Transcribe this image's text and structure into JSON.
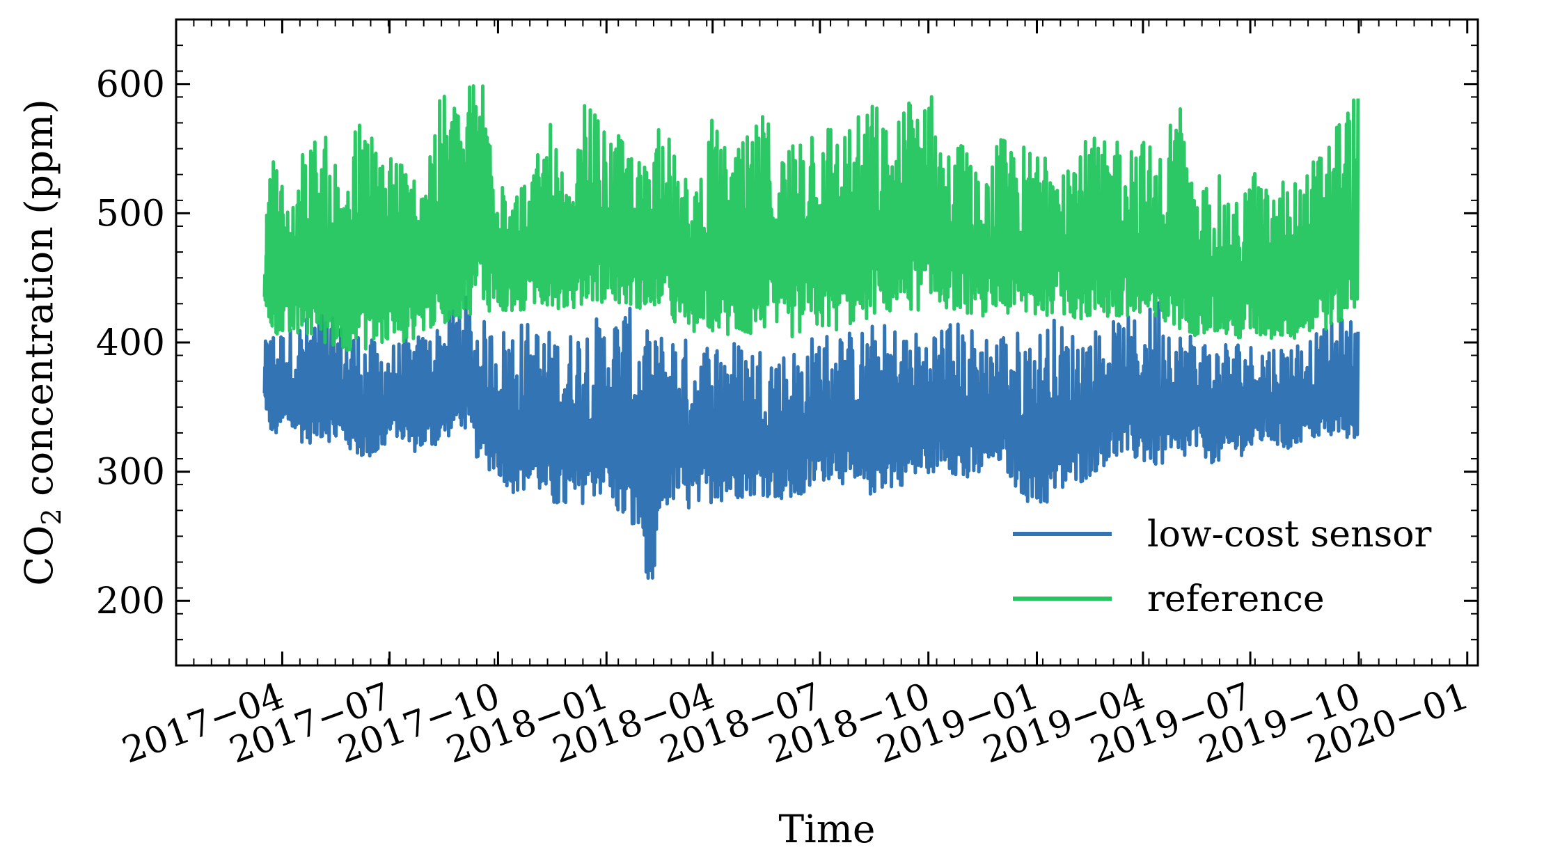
{
  "chart_data": {
    "type": "line",
    "xlabel": "Time",
    "ylabel_main": "CO",
    "ylabel_sub": "2",
    "ylabel_rest": " concentration (ppm)",
    "ylim": [
      150,
      650
    ],
    "xlim": [
      "2017-01-01",
      "2020-01-10"
    ],
    "x_axis_type": "date",
    "yticks": [
      200,
      300,
      400,
      500,
      600
    ],
    "xticks": [
      {
        "date": "2017-04-01",
        "label": "2017−04"
      },
      {
        "date": "2017-07-01",
        "label": "2017−07"
      },
      {
        "date": "2017-10-01",
        "label": "2017−10"
      },
      {
        "date": "2018-01-01",
        "label": "2018−01"
      },
      {
        "date": "2018-04-01",
        "label": "2018−04"
      },
      {
        "date": "2018-07-01",
        "label": "2018−07"
      },
      {
        "date": "2018-10-01",
        "label": "2018−10"
      },
      {
        "date": "2019-01-01",
        "label": "2019−01"
      },
      {
        "date": "2019-04-01",
        "label": "2019−04"
      },
      {
        "date": "2019-07-01",
        "label": "2019−07"
      },
      {
        "date": "2019-10-01",
        "label": "2019−10"
      },
      {
        "date": "2020-01-01",
        "label": "2020−01"
      }
    ],
    "grid": false,
    "legend_position": "lower-right",
    "series": [
      {
        "name": "low-cost sensor",
        "color": "#3274b4",
        "x": [
          "2017-03-17",
          "2017-03-24",
          "2017-04-05",
          "2017-04-20",
          "2017-05-05",
          "2017-05-20",
          "2017-06-05",
          "2017-06-20",
          "2017-07-05",
          "2017-07-20",
          "2017-08-05",
          "2017-08-18",
          "2017-09-01",
          "2017-09-15",
          "2017-10-01",
          "2017-10-15",
          "2017-11-01",
          "2017-11-15",
          "2017-12-01",
          "2017-12-15",
          "2018-01-01",
          "2018-01-15",
          "2018-02-01",
          "2018-02-08",
          "2018-02-15",
          "2018-03-01",
          "2018-03-15",
          "2018-04-01",
          "2018-04-15",
          "2018-05-01",
          "2018-05-15",
          "2018-06-01",
          "2018-06-15",
          "2018-07-01",
          "2018-07-15",
          "2018-08-01",
          "2018-08-15",
          "2018-09-01",
          "2018-09-15",
          "2018-10-01",
          "2018-10-15",
          "2018-11-01",
          "2018-11-15",
          "2018-12-01",
          "2018-12-15",
          "2019-01-01",
          "2019-01-15",
          "2019-02-01",
          "2019-02-15",
          "2019-03-01",
          "2019-03-15",
          "2019-04-01",
          "2019-04-15",
          "2019-05-01",
          "2019-05-15",
          "2019-06-01",
          "2019-06-15",
          "2019-07-01",
          "2019-07-15",
          "2019-08-01",
          "2019-08-15",
          "2019-09-01",
          "2019-09-15",
          "2019-10-01"
        ],
        "low": [
          350,
          320,
          330,
          315,
          320,
          315,
          305,
          305,
          325,
          310,
          312,
          320,
          330,
          300,
          290,
          275,
          280,
          265,
          260,
          270,
          275,
          250,
          235,
          175,
          260,
          270,
          260,
          270,
          270,
          275,
          275,
          270,
          270,
          285,
          290,
          270,
          275,
          280,
          285,
          290,
          300,
          280,
          290,
          300,
          280,
          260,
          270,
          280,
          290,
          300,
          305,
          300,
          295,
          300,
          310,
          300,
          305,
          310,
          320,
          310,
          320,
          320,
          320,
          320
        ],
        "high": [
          400,
          410,
          410,
          420,
          425,
          415,
          410,
          400,
          400,
          405,
          410,
          420,
          440,
          420,
          410,
          420,
          415,
          410,
          410,
          420,
          420,
          430,
          420,
          400,
          410,
          410,
          400,
          405,
          405,
          400,
          400,
          395,
          400,
          410,
          410,
          410,
          415,
          415,
          410,
          410,
          420,
          415,
          410,
          410,
          410,
          410,
          420,
          410,
          410,
          415,
          420,
          420,
          440,
          410,
          410,
          400,
          405,
          400,
          400,
          400,
          405,
          410,
          420,
          420
        ]
      },
      {
        "name": "reference",
        "color": "#22c55e",
        "x": [
          "2017-03-17",
          "2017-03-24",
          "2017-04-05",
          "2017-04-20",
          "2017-05-05",
          "2017-05-20",
          "2017-06-05",
          "2017-06-20",
          "2017-07-05",
          "2017-07-20",
          "2017-08-05",
          "2017-08-18",
          "2017-09-01",
          "2017-09-15",
          "2017-10-01",
          "2017-10-15",
          "2017-11-01",
          "2017-11-15",
          "2017-12-01",
          "2017-12-15",
          "2018-01-01",
          "2018-01-15",
          "2018-02-01",
          "2018-02-08",
          "2018-02-15",
          "2018-03-01",
          "2018-03-15",
          "2018-04-01",
          "2018-04-15",
          "2018-05-01",
          "2018-05-15",
          "2018-06-01",
          "2018-06-15",
          "2018-07-01",
          "2018-07-15",
          "2018-08-01",
          "2018-08-15",
          "2018-09-01",
          "2018-09-15",
          "2018-10-01",
          "2018-10-15",
          "2018-11-01",
          "2018-11-15",
          "2018-12-01",
          "2018-12-15",
          "2019-01-01",
          "2019-01-15",
          "2019-02-01",
          "2019-02-15",
          "2019-03-01",
          "2019-03-15",
          "2019-04-01",
          "2019-04-15",
          "2019-05-01",
          "2019-05-15",
          "2019-06-01",
          "2019-06-15",
          "2019-07-01",
          "2019-07-15",
          "2019-08-01",
          "2019-08-15",
          "2019-09-01",
          "2019-09-15",
          "2019-10-01"
        ],
        "low": [
          420,
          400,
          395,
          395,
          390,
          385,
          385,
          385,
          390,
          395,
          400,
          405,
          410,
          415,
          415,
          415,
          420,
          420,
          420,
          420,
          425,
          420,
          420,
          420,
          420,
          405,
          400,
          400,
          395,
          395,
          400,
          395,
          395,
          400,
          400,
          405,
          410,
          415,
          415,
          415,
          420,
          415,
          415,
          415,
          410,
          410,
          415,
          410,
          410,
          410,
          405,
          405,
          400,
          400,
          400,
          400,
          395,
          395,
          395,
          395,
          395,
          400,
          405,
          410
        ],
        "high": [
          480,
          555,
          510,
          555,
          565,
          540,
          575,
          560,
          560,
          530,
          570,
          600,
          585,
          625,
          560,
          520,
          540,
          570,
          510,
          595,
          560,
          560,
          540,
          530,
          590,
          540,
          520,
          575,
          545,
          560,
          580,
          550,
          580,
          580,
          570,
          575,
          590,
          560,
          600,
          605,
          550,
          560,
          520,
          560,
          555,
          550,
          570,
          550,
          560,
          555,
          570,
          560,
          545,
          600,
          510,
          540,
          500,
          540,
          520,
          530,
          525,
          560,
          580,
          600
        ]
      }
    ]
  }
}
